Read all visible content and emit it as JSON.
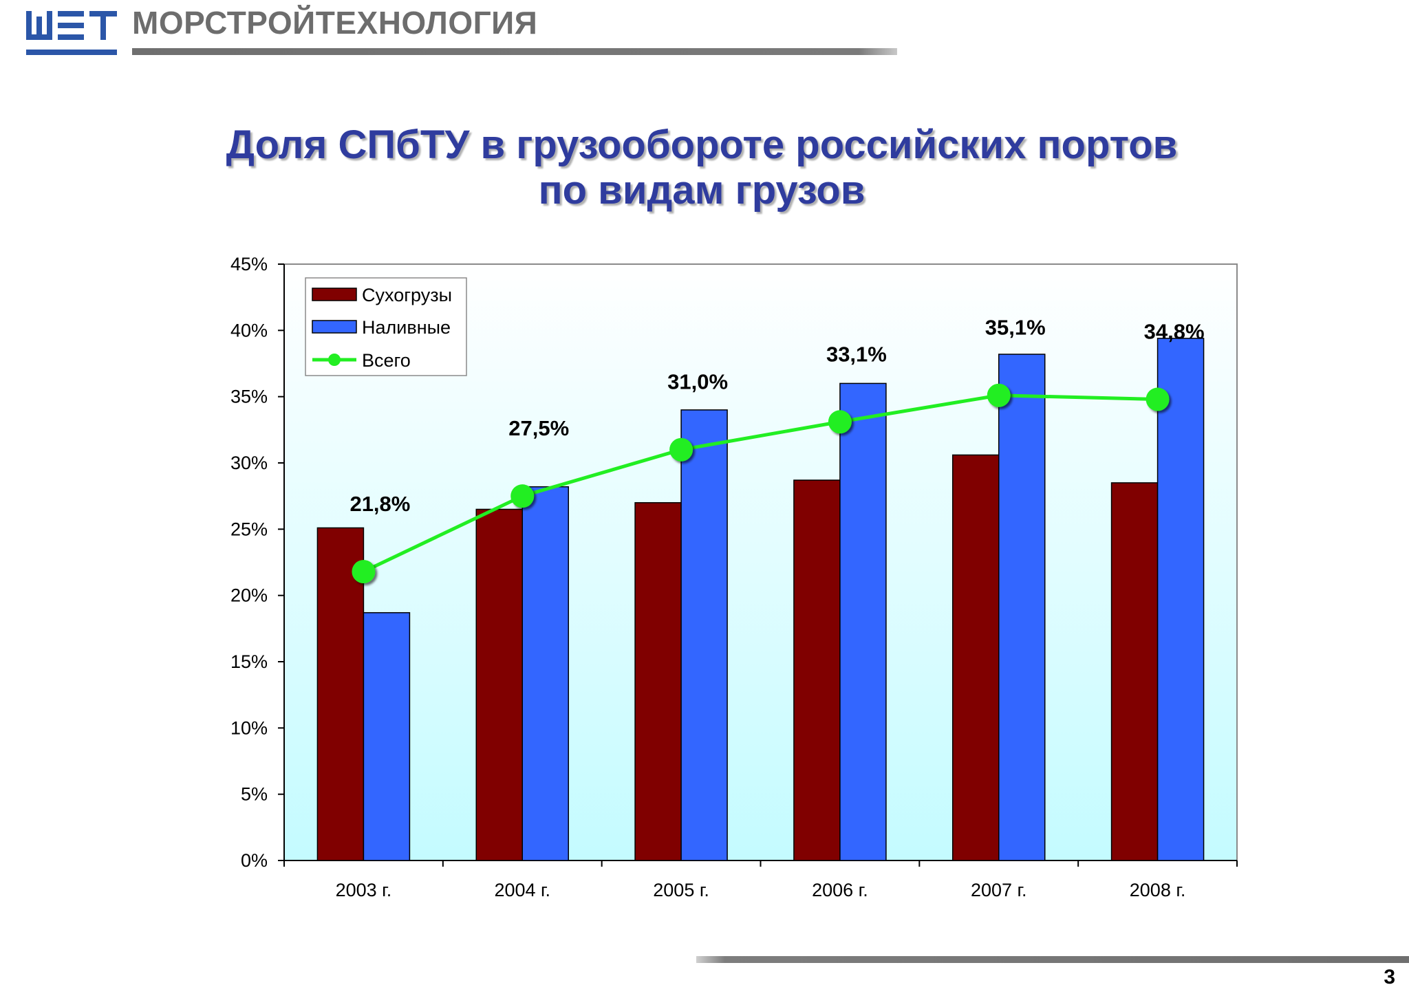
{
  "header": {
    "company_name": "МОРСТРОЙТЕХНОЛОГИЯ",
    "logo_icon": "mst-logo-icon"
  },
  "title": {
    "line1": "Доля  СПбТУ в грузообороте российских портов",
    "line2": "по видам грузов"
  },
  "page_number": "3",
  "colors": {
    "title": "#2f3c9e",
    "dry_bars": "#800000",
    "liquid_bars": "#3366ff",
    "total_line": "#22ee22",
    "logo": "#2b56a8"
  },
  "chart_data": {
    "type": "bar",
    "categories": [
      "2003 г.",
      "2004 г.",
      "2005 г.",
      "2006 г.",
      "2007 г.",
      "2008 г."
    ],
    "series": [
      {
        "name": "Сухогрузы",
        "type": "bar",
        "color": "#800000",
        "values": [
          25.1,
          26.5,
          27.0,
          28.7,
          30.6,
          28.5
        ]
      },
      {
        "name": "Наливные",
        "type": "bar",
        "color": "#3366ff",
        "values": [
          18.7,
          28.2,
          34.0,
          36.0,
          38.2,
          39.4
        ]
      },
      {
        "name": "Всего",
        "type": "line",
        "color": "#22ee22",
        "values": [
          21.8,
          27.5,
          31.0,
          33.1,
          35.1,
          34.8
        ],
        "labels": [
          "21,8%",
          "27,5%",
          "31,0%",
          "33,1%",
          "35,1%",
          "34,8%"
        ]
      }
    ],
    "ylim": [
      0,
      45
    ],
    "yticks": [
      0,
      5,
      10,
      15,
      20,
      25,
      30,
      35,
      40,
      45
    ],
    "ytick_labels": [
      "0%",
      "5%",
      "10%",
      "15%",
      "20%",
      "25%",
      "30%",
      "35%",
      "40%",
      "45%"
    ],
    "legend": {
      "position": "top-left",
      "entries": [
        "Сухогрузы",
        "Наливные",
        "Всего"
      ]
    },
    "grid": false,
    "background": "gradient white to light cyan"
  }
}
